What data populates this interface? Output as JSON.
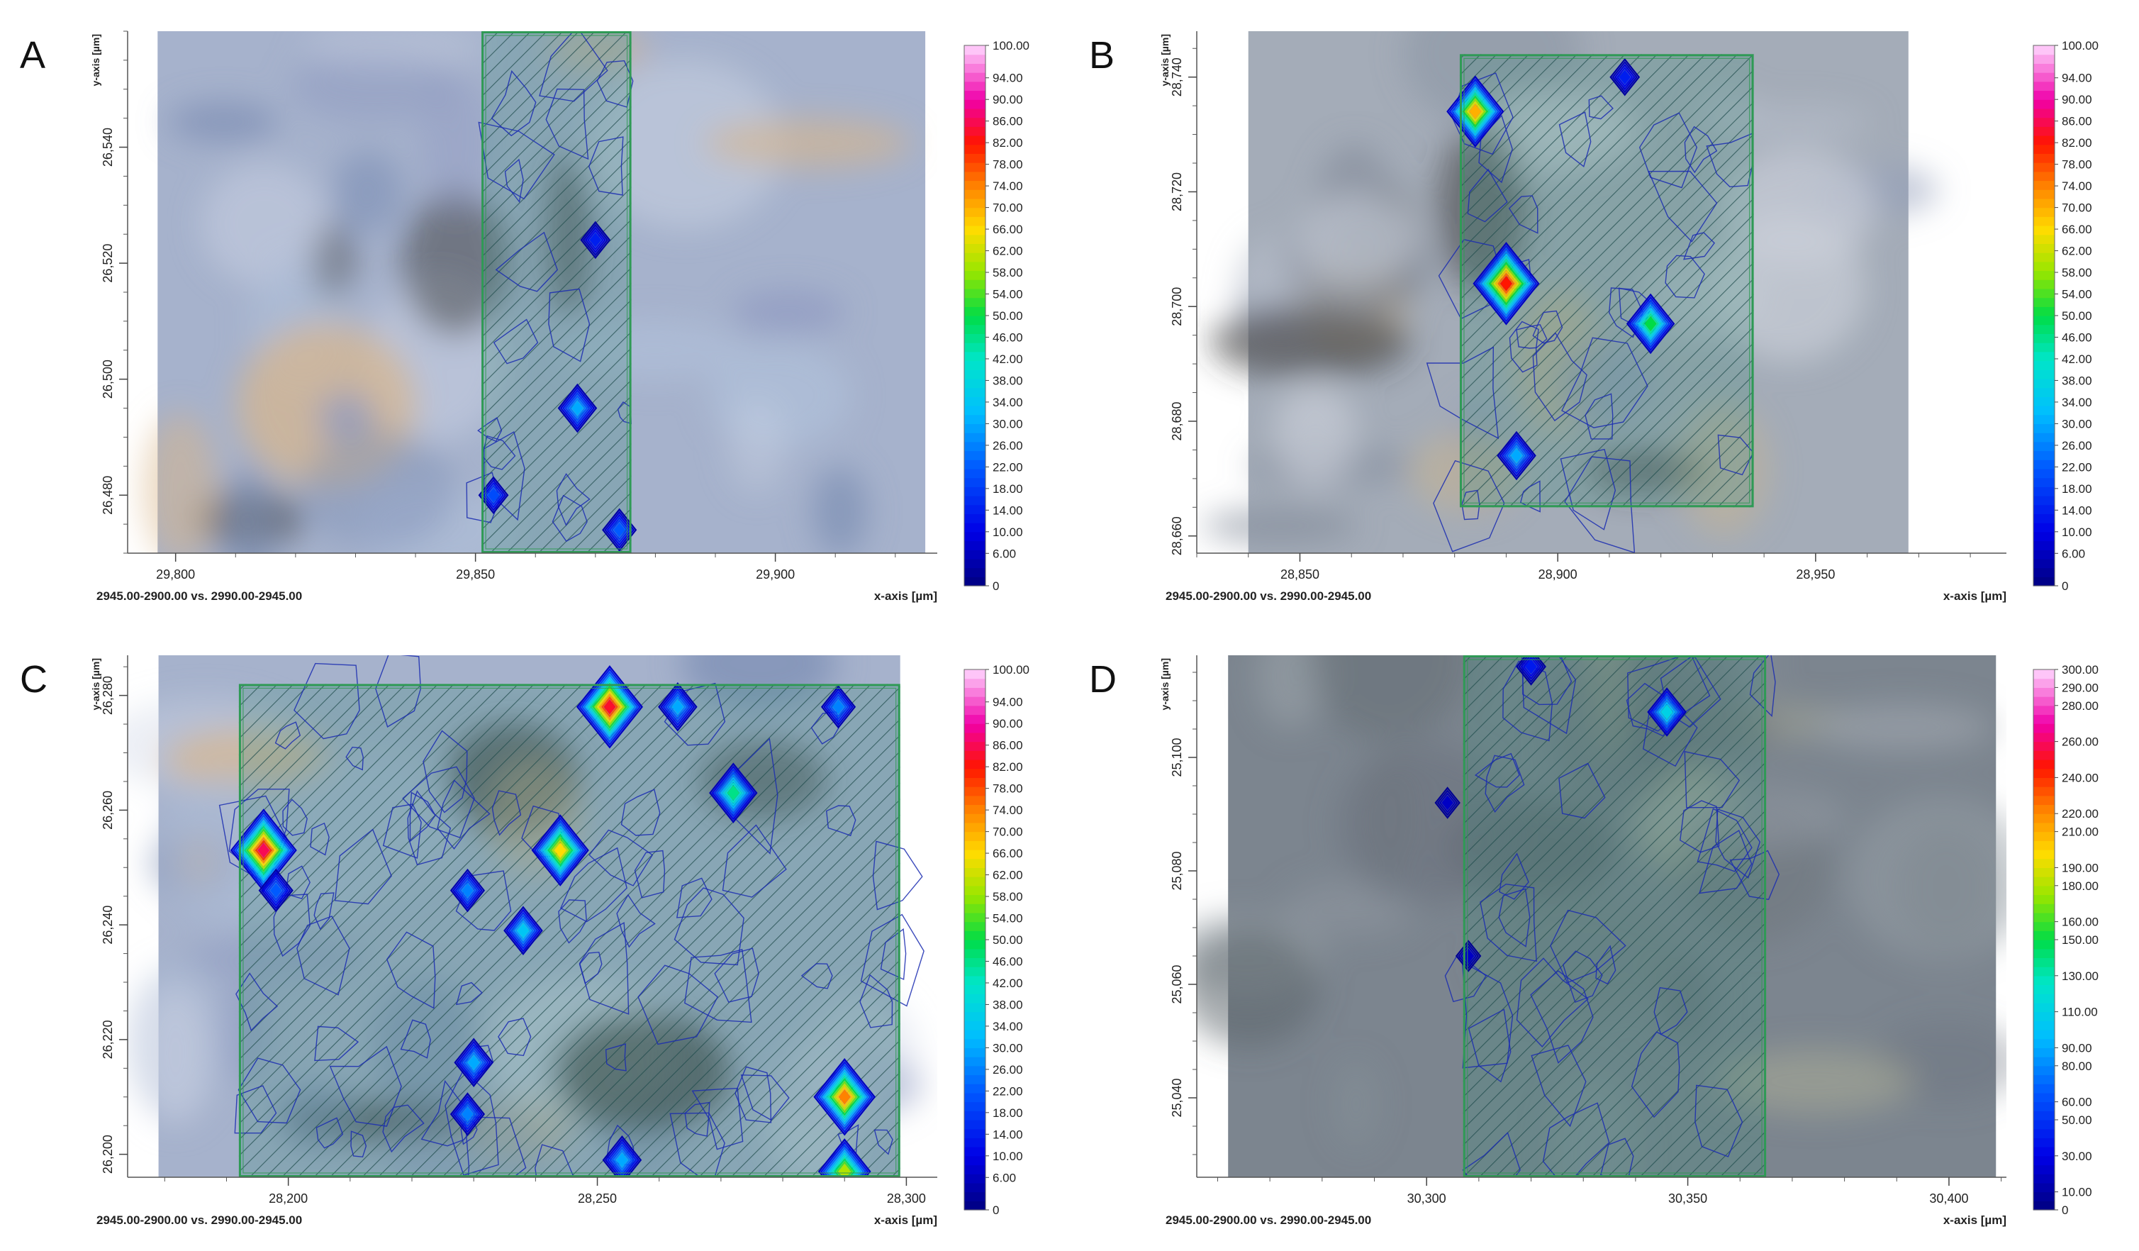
{
  "footer_text": "2945.00-2900.00 vs. 2990.00-2945.00",
  "xaxis_label": "x-axis [µm]",
  "yaxis_label": "y-axis [µm]",
  "colors": {
    "overlay_green": "#2f9a55",
    "contour_blue": "#1a2bb0",
    "hatch": "#1f4a4a"
  },
  "chart_data": [
    {
      "type": "heatmap",
      "panel_letter": "A",
      "xlabel": "x-axis [µm]",
      "ylabel": "y-axis [µm]",
      "x_ticks": [
        "29,800",
        "29,850",
        "29,900"
      ],
      "x_tick_values": [
        29800,
        29850,
        29900
      ],
      "y_ticks": [
        "26,480",
        "26,500",
        "26,520",
        "26,540"
      ],
      "y_tick_values": [
        26480,
        26500,
        26520,
        26540
      ],
      "xlim": [
        29792,
        29927
      ],
      "ylim": [
        26470,
        26560
      ],
      "image_extent": {
        "x": [
          29797,
          29925
        ],
        "y": [
          26470,
          26560
        ]
      },
      "map_region": {
        "x": [
          29851,
          29876
        ],
        "y": [
          26470,
          26560
        ]
      },
      "hot_spots": [
        [
          29867,
          26495,
          30
        ],
        [
          29853,
          26480,
          20
        ],
        [
          29874,
          26474,
          22
        ],
        [
          29870,
          26524,
          14
        ]
      ],
      "colorbar": {
        "max": 100,
        "labels": [
          "100.00",
          "94.00",
          "90.00",
          "86.00",
          "82.00",
          "78.00",
          "74.00",
          "70.00",
          "66.00",
          "62.00",
          "58.00",
          "54.00",
          "50.00",
          "46.00",
          "42.00",
          "38.00",
          "34.00",
          "30.00",
          "26.00",
          "22.00",
          "18.00",
          "14.00",
          "10.00",
          "6.00",
          "0"
        ],
        "label_values": [
          100,
          94,
          90,
          86,
          82,
          78,
          74,
          70,
          66,
          62,
          58,
          54,
          50,
          46,
          42,
          38,
          34,
          30,
          26,
          22,
          18,
          14,
          10,
          6,
          0
        ]
      },
      "footer": "2945.00-2900.00 vs. 2990.00-2945.00",
      "image_tone": "blue"
    },
    {
      "type": "heatmap",
      "panel_letter": "B",
      "xlabel": "x-axis [µm]",
      "ylabel": "y-axis [µm]",
      "x_ticks": [
        "28,850",
        "28,900",
        "28,950"
      ],
      "x_tick_values": [
        28850,
        28900,
        28950
      ],
      "y_ticks": [
        "28,660",
        "28,680",
        "28,700",
        "28,720",
        "28,740"
      ],
      "y_tick_values": [
        28660,
        28680,
        28700,
        28720,
        28740
      ],
      "xlim": [
        28830,
        28987
      ],
      "ylim": [
        28657,
        28748
      ],
      "image_extent": {
        "x": [
          28840,
          28968
        ],
        "y": [
          28657,
          28748
        ]
      },
      "map_region": {
        "x": [
          28881,
          28938
        ],
        "y": [
          28665,
          28744
        ]
      },
      "hot_spots": [
        [
          28890,
          28704,
          82
        ],
        [
          28918,
          28697,
          50
        ],
        [
          28892,
          28674,
          30
        ],
        [
          28913,
          28740,
          14
        ],
        [
          28884,
          28734,
          70
        ]
      ],
      "colorbar": {
        "max": 100,
        "labels": [
          "100.00",
          "94.00",
          "90.00",
          "86.00",
          "82.00",
          "78.00",
          "74.00",
          "70.00",
          "66.00",
          "62.00",
          "58.00",
          "54.00",
          "50.00",
          "46.00",
          "42.00",
          "38.00",
          "34.00",
          "30.00",
          "26.00",
          "22.00",
          "18.00",
          "14.00",
          "10.00",
          "6.00",
          "0"
        ],
        "label_values": [
          100,
          94,
          90,
          86,
          82,
          78,
          74,
          70,
          66,
          62,
          58,
          54,
          50,
          46,
          42,
          38,
          34,
          30,
          26,
          22,
          18,
          14,
          10,
          6,
          0
        ]
      },
      "footer": "2945.00-2900.00 vs. 2990.00-2945.00",
      "image_tone": "grey"
    },
    {
      "type": "heatmap",
      "panel_letter": "C",
      "xlabel": "x-axis [µm]",
      "ylabel": "y-axis [µm]",
      "x_ticks": [
        "28,200",
        "28,250",
        "28,300"
      ],
      "x_tick_values": [
        28200,
        28250,
        28300
      ],
      "y_ticks": [
        "26,200",
        "26,220",
        "26,240",
        "26,260",
        "26,280"
      ],
      "y_tick_values": [
        26200,
        26220,
        26240,
        26260,
        26280
      ],
      "xlim": [
        28174,
        28305
      ],
      "ylim": [
        26196,
        26287
      ],
      "image_extent": {
        "x": [
          28179,
          28299
        ],
        "y": [
          26196,
          26287
        ]
      },
      "map_region": {
        "x": [
          28192,
          28299
        ],
        "y": [
          26196,
          26282
        ]
      },
      "hot_spots": [
        [
          28196,
          26253,
          86
        ],
        [
          28244,
          26253,
          66
        ],
        [
          28252,
          26278,
          84
        ],
        [
          28263,
          26278,
          30
        ],
        [
          28272,
          26263,
          46
        ],
        [
          28290,
          26210,
          74
        ],
        [
          28290,
          26197,
          60
        ],
        [
          28230,
          26216,
          30
        ],
        [
          28229,
          26207,
          26
        ],
        [
          28254,
          26199,
          30
        ],
        [
          28198,
          26246,
          22
        ],
        [
          28229,
          26246,
          26
        ],
        [
          28238,
          26239,
          34
        ],
        [
          28289,
          26278,
          26
        ]
      ],
      "colorbar": {
        "max": 100,
        "labels": [
          "100.00",
          "94.00",
          "90.00",
          "86.00",
          "82.00",
          "78.00",
          "74.00",
          "70.00",
          "66.00",
          "62.00",
          "58.00",
          "54.00",
          "50.00",
          "46.00",
          "42.00",
          "38.00",
          "34.00",
          "30.00",
          "26.00",
          "22.00",
          "18.00",
          "14.00",
          "10.00",
          "6.00",
          "0"
        ],
        "label_values": [
          100,
          94,
          90,
          86,
          82,
          78,
          74,
          70,
          66,
          62,
          58,
          54,
          50,
          46,
          42,
          38,
          34,
          30,
          26,
          22,
          18,
          14,
          10,
          6,
          0
        ]
      },
      "footer": "2945.00-2900.00 vs. 2990.00-2945.00",
      "image_tone": "blue"
    },
    {
      "type": "heatmap",
      "panel_letter": "D",
      "xlabel": "x-axis [µm]",
      "ylabel": "y-axis [µm]",
      "x_ticks": [
        "30,300",
        "30,350",
        "30,400"
      ],
      "x_tick_values": [
        30300,
        30350,
        30400
      ],
      "y_ticks": [
        "25,040",
        "25,060",
        "25,080",
        "25,100"
      ],
      "y_tick_values": [
        25040,
        25060,
        25080,
        25100
      ],
      "xlim": [
        30256,
        30411
      ],
      "ylim": [
        25026,
        25118
      ],
      "image_extent": {
        "x": [
          30262,
          30409
        ],
        "y": [
          25026,
          25118
        ]
      },
      "map_region": {
        "x": [
          30307,
          30365
        ],
        "y": [
          25026,
          25118
        ]
      },
      "hot_spots": [
        [
          30346,
          25108,
          110
        ],
        [
          30320,
          25116,
          40
        ],
        [
          30308,
          25065,
          20
        ],
        [
          30304,
          25092,
          20
        ]
      ],
      "colorbar": {
        "max": 300,
        "labels": [
          "300.00",
          "290.00",
          "280.00",
          "260.00",
          "240.00",
          "220.00",
          "210.00",
          "190.00",
          "180.00",
          "160.00",
          "150.00",
          "130.00",
          "110.00",
          "90.00",
          "80.00",
          "60.00",
          "50.00",
          "30.00",
          "10.00",
          "0"
        ],
        "label_values": [
          300,
          290,
          280,
          260,
          240,
          220,
          210,
          190,
          180,
          160,
          150,
          130,
          110,
          90,
          80,
          60,
          50,
          30,
          10,
          0
        ]
      },
      "footer": "2945.00-2900.00 vs. 2990.00-2945.00",
      "image_tone": "dark"
    }
  ]
}
